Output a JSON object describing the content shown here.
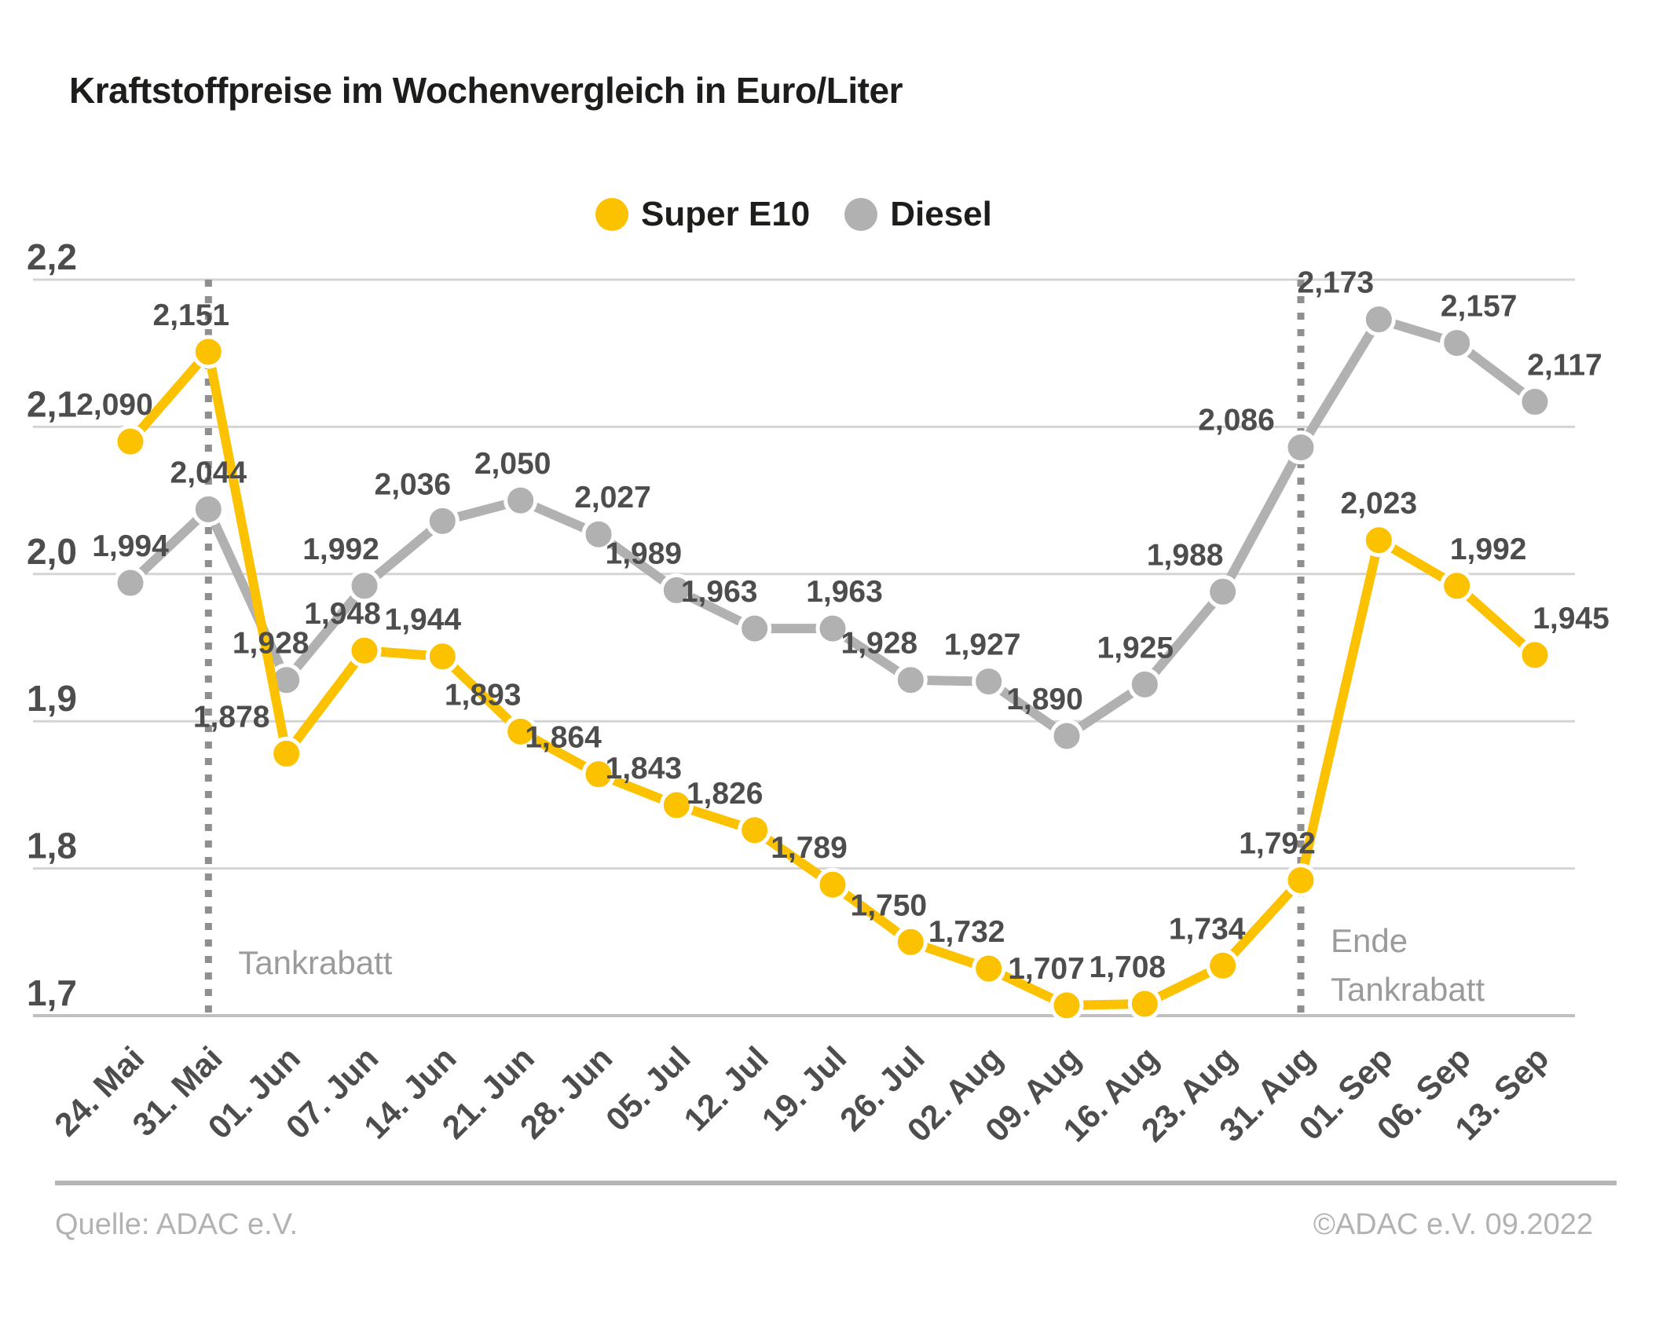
{
  "title": "Kraftstoffpreise im Wochenvergleich in Euro/Liter",
  "legend": {
    "items": [
      {
        "label": "Super E10",
        "color": "#FCC200"
      },
      {
        "label": "Diesel",
        "color": "#B1B1B1"
      }
    ]
  },
  "chart_data": {
    "type": "line",
    "title": "Kraftstoffpreise im Wochenvergleich in Euro/Liter",
    "categories": [
      "24. Mai",
      "31. Mai",
      "01. Jun",
      "07. Jun",
      "14. Jun",
      "21. Jun",
      "28. Jun",
      "05. Jul",
      "12. Jul",
      "19. Jul",
      "26. Jul",
      "02. Aug",
      "09. Aug",
      "16. Aug",
      "23. Aug",
      "31. Aug",
      "01. Sep",
      "06. Sep",
      "13. Sep"
    ],
    "series": [
      {
        "name": "Super E10",
        "color": "#FCC200",
        "values": [
          2.09,
          2.151,
          1.878,
          1.948,
          1.944,
          1.893,
          1.864,
          1.843,
          1.826,
          1.789,
          1.75,
          1.732,
          1.707,
          1.708,
          1.734,
          1.792,
          2.023,
          1.992,
          1.945
        ],
        "point_labels": [
          "2,090",
          "2,151",
          "1,878",
          "1,948",
          "1,944",
          "1,893",
          "1,864",
          "1,843",
          "1,826",
          "1,789",
          "1,750",
          "1,732",
          "1,707",
          "1,708",
          "1,734",
          "1,792",
          "2,023",
          "1,992",
          "1,945"
        ]
      },
      {
        "name": "Diesel",
        "color": "#B1B1B1",
        "values": [
          1.994,
          2.044,
          1.928,
          1.992,
          2.036,
          2.05,
          2.027,
          1.989,
          1.963,
          1.963,
          1.928,
          1.927,
          1.89,
          1.925,
          1.988,
          2.086,
          2.173,
          2.157,
          2.117
        ],
        "point_labels": [
          "1,994",
          "2,044",
          "1,928",
          "1,992",
          "2,036",
          "2,050",
          "2,027",
          "1,989",
          "1,963",
          "1,963",
          "1,928",
          "1,927",
          "1,890",
          "1,925",
          "1,988",
          "2,086",
          "2,173",
          "2,157",
          "2,117"
        ]
      }
    ],
    "xlabel": "",
    "ylabel": "",
    "ylim": [
      1.7,
      2.2
    ],
    "yticks": [
      {
        "value": 2.2,
        "label": "2,2"
      },
      {
        "value": 2.1,
        "label": "2,1"
      },
      {
        "value": 2.0,
        "label": "2,0"
      },
      {
        "value": 1.9,
        "label": "1,9"
      },
      {
        "value": 1.8,
        "label": "1,8"
      },
      {
        "value": 1.7,
        "label": "1,7"
      }
    ],
    "grid": true,
    "legend_position": "top-center",
    "annotations": [
      {
        "category": "31. Mai",
        "lines": [
          "Tankrabatt"
        ]
      },
      {
        "category": "31. Aug",
        "lines": [
          "Ende",
          "Tankrabatt"
        ]
      }
    ]
  },
  "footer": {
    "source": "Quelle: ADAC e.V.",
    "copyright": "©ADAC e.V.  09.2022"
  },
  "colors": {
    "grid_line": "#D4D4D4",
    "axis_line": "#C0C0C0",
    "tick_text": "#4D4D4D",
    "value_text": "#4D4D4D",
    "annotation_text": "#9B9B9B",
    "dotted_line": "#8F8F8F",
    "marker_ring": "#FFFFFF"
  }
}
